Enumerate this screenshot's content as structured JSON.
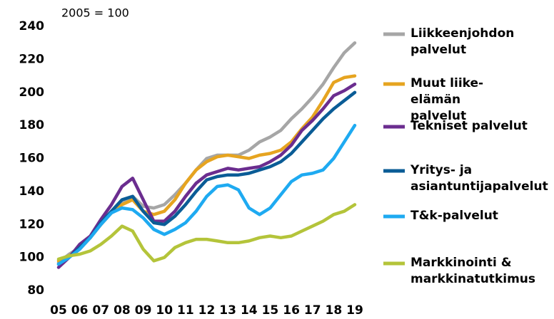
{
  "chart_data": {
    "type": "line",
    "subtitle": "2005 = 100",
    "x": [
      5,
      5.5,
      6,
      6.5,
      7,
      7.5,
      8,
      8.5,
      9,
      9.5,
      10,
      10.5,
      11,
      11.5,
      12,
      12.5,
      13,
      13.5,
      14,
      14.5,
      15,
      15.5,
      16,
      16.5,
      17,
      17.5,
      18,
      18.5,
      19
    ],
    "xlim": [
      5,
      19
    ],
    "xticks": [
      {
        "value": 5,
        "label": "05"
      },
      {
        "value": 6,
        "label": "06"
      },
      {
        "value": 7,
        "label": "07"
      },
      {
        "value": 8,
        "label": "08"
      },
      {
        "value": 9,
        "label": "09"
      },
      10,
      11,
      12,
      13,
      14,
      15,
      16,
      17,
      18,
      19
    ],
    "ylim": [
      80,
      240
    ],
    "yticks": [
      80,
      100,
      120,
      140,
      160,
      180,
      200,
      220,
      240
    ],
    "series": [
      {
        "name": "Liikkeenjohdon palvelut",
        "color": "#a6a6a6",
        "values": [
          97,
          102,
          106,
          112,
          120,
          128,
          134,
          137,
          131,
          130,
          132,
          138,
          145,
          153,
          160,
          162,
          162,
          162,
          165,
          170,
          173,
          177,
          184,
          190,
          197,
          205,
          215,
          224,
          230
        ]
      },
      {
        "name": "Muut liike-elämän palvelut",
        "color": "#e6a420",
        "values": [
          98,
          101,
          105,
          112,
          120,
          127,
          132,
          135,
          128,
          126,
          128,
          135,
          145,
          153,
          158,
          161,
          162,
          161,
          160,
          162,
          163,
          165,
          170,
          178,
          185,
          195,
          206,
          209,
          210
        ]
      },
      {
        "name": "Tekniset palvelut",
        "color": "#6b2d8f",
        "values": [
          94,
          100,
          108,
          113,
          123,
          132,
          143,
          148,
          135,
          122,
          122,
          128,
          137,
          145,
          150,
          152,
          154,
          153,
          154,
          155,
          158,
          162,
          168,
          177,
          183,
          190,
          198,
          201,
          205
        ]
      },
      {
        "name": "Yritys- ja asiantuntijapalvelut",
        "color": "#0a5c96",
        "values": [
          96,
          100,
          106,
          112,
          121,
          128,
          135,
          137,
          128,
          121,
          120,
          125,
          132,
          140,
          147,
          149,
          150,
          150,
          151,
          153,
          155,
          158,
          163,
          170,
          177,
          184,
          190,
          195,
          200
        ]
      },
      {
        "name": "T&k-palvelut",
        "color": "#1eaaf1",
        "values": [
          96,
          100,
          105,
          112,
          120,
          127,
          130,
          129,
          124,
          117,
          114,
          117,
          121,
          128,
          137,
          143,
          144,
          141,
          130,
          126,
          130,
          138,
          146,
          150,
          151,
          153,
          160,
          170,
          180
        ]
      },
      {
        "name": "Markkinointi & markkinatutkimus",
        "color": "#b4c43a",
        "values": [
          99,
          101,
          102,
          104,
          108,
          113,
          119,
          116,
          105,
          98,
          100,
          106,
          109,
          111,
          111,
          110,
          109,
          109,
          110,
          112,
          113,
          112,
          113,
          116,
          119,
          122,
          126,
          128,
          132
        ]
      }
    ]
  }
}
